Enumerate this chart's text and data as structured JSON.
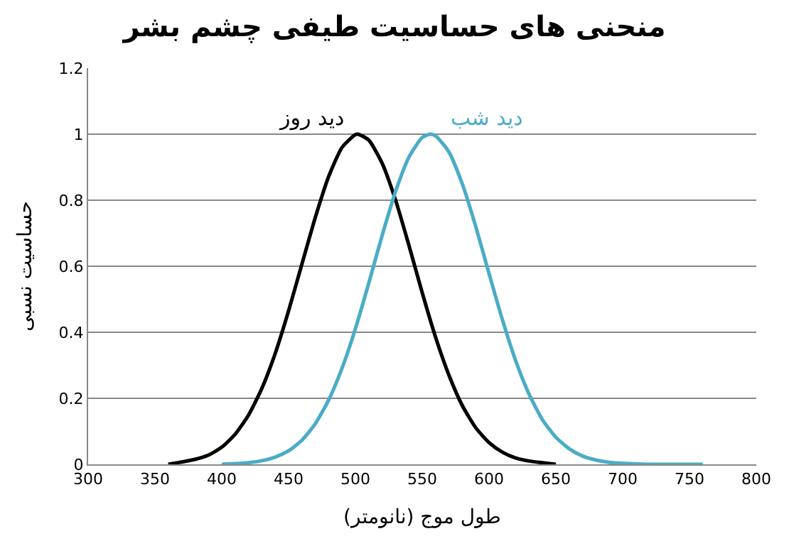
{
  "chart_data": {
    "type": "line",
    "title": "منحنی های حساسیت طیفی چشم بشر",
    "xlabel": "طول موج (نانومتر)",
    "ylabel": "حساسیت نسبی",
    "series": [
      {
        "name": "دید روز",
        "color": "#000000",
        "x": [
          360,
          370,
          380,
          390,
          400,
          410,
          420,
          430,
          440,
          450,
          460,
          470,
          480,
          490,
          500,
          502,
          510,
          520,
          530,
          540,
          550,
          560,
          570,
          580,
          590,
          600,
          610,
          620,
          630,
          640,
          650
        ],
        "values": [
          0,
          0.007,
          0.015,
          0.028,
          0.052,
          0.091,
          0.149,
          0.23,
          0.336,
          0.465,
          0.607,
          0.748,
          0.872,
          0.96,
          0.999,
          1,
          0.982,
          0.912,
          0.801,
          0.664,
          0.52,
          0.385,
          0.27,
          0.178,
          0.111,
          0.066,
          0.037,
          0.019,
          0.01,
          0.005,
          0
        ]
      },
      {
        "name": "دید شب",
        "color": "#4bacc6",
        "x": [
          400,
          410,
          420,
          430,
          440,
          450,
          460,
          470,
          480,
          490,
          500,
          510,
          520,
          530,
          540,
          550,
          556,
          560,
          570,
          580,
          590,
          600,
          610,
          620,
          630,
          640,
          650,
          660,
          670,
          680,
          690,
          700,
          720,
          760
        ],
        "values": [
          0,
          0.002,
          0.005,
          0.011,
          0.022,
          0.041,
          0.073,
          0.123,
          0.195,
          0.291,
          0.411,
          0.549,
          0.693,
          0.826,
          0.93,
          0.99,
          1,
          0.995,
          0.946,
          0.849,
          0.721,
          0.578,
          0.438,
          0.313,
          0.212,
          0.135,
          0.082,
          0.047,
          0.025,
          0.013,
          0.006,
          0.003,
          0,
          0
        ]
      }
    ],
    "xlim": [
      300,
      800
    ],
    "xticks": [
      300,
      350,
      400,
      450,
      500,
      550,
      600,
      650,
      700,
      750,
      800
    ],
    "ylim": [
      0,
      1.2
    ],
    "yticks": [
      0,
      0.2,
      0.4,
      0.6,
      0.8,
      1,
      1.2
    ],
    "grid": "y",
    "legend": false,
    "marker": "none",
    "line_style": "solid"
  }
}
